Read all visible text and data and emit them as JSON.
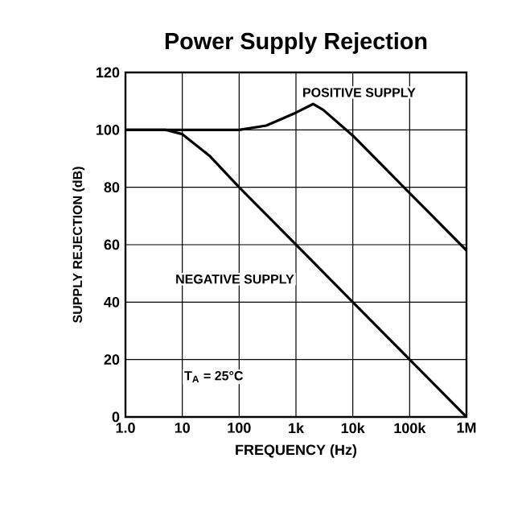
{
  "chart_data": {
    "type": "line",
    "title": "Power Supply Rejection",
    "xlabel": "FREQUENCY (Hz)",
    "ylabel": "SUPPLY REJECTION (dB)",
    "log": "x",
    "grid": true,
    "marker": "none",
    "line_style": "solid",
    "xlim": [
      1,
      1000000
    ],
    "ylim": [
      0,
      120
    ],
    "xticks": [
      {
        "value": 1,
        "label": "1.0"
      },
      {
        "value": 10,
        "label": "10"
      },
      {
        "value": 100,
        "label": "100"
      },
      {
        "value": 1000,
        "label": "1k"
      },
      {
        "value": 10000,
        "label": "10k"
      },
      {
        "value": 100000,
        "label": "100k"
      },
      {
        "value": 1000000,
        "label": "1M"
      }
    ],
    "yticks": [
      0,
      20,
      40,
      60,
      80,
      100,
      120
    ],
    "annotations": [
      "T$_{A}$ = 25°C"
    ],
    "series": [
      {
        "name": "POSITIVE SUPPLY",
        "color": "#000000",
        "x": [
          1,
          10,
          100,
          300,
          1000,
          2000,
          3000,
          10000,
          100000,
          1000000
        ],
        "values": [
          100,
          100,
          100,
          101.5,
          106,
          109,
          107,
          98,
          78,
          58
        ]
      },
      {
        "name": "NEGATIVE SUPPLY",
        "color": "#000000",
        "x": [
          1,
          5,
          10,
          30,
          100,
          1000,
          10000,
          100000,
          1000000
        ],
        "values": [
          100,
          100,
          98.5,
          91,
          80,
          60,
          40,
          20,
          0
        ]
      }
    ]
  }
}
